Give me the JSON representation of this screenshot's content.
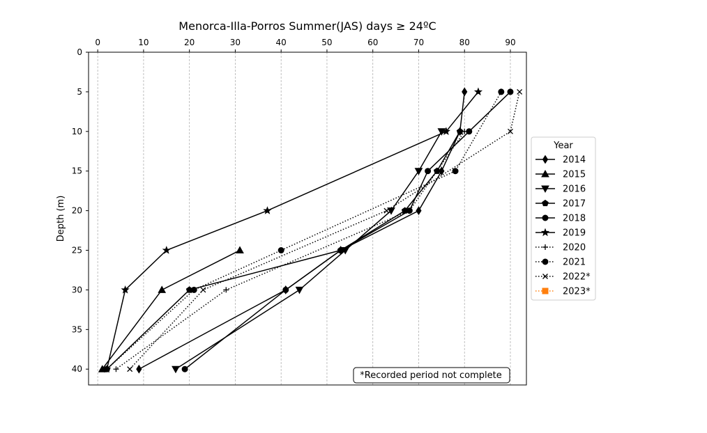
{
  "chart_data": {
    "type": "line",
    "title": "Menorca-Illa-Porros Summer(JAS) days ≥ 24ºC",
    "xlabel": "",
    "ylabel": "Depth (m)",
    "x_axis_position": "top",
    "y_inverted": true,
    "xlim": [
      -2,
      93.5
    ],
    "ylim": [
      0,
      42
    ],
    "x_ticks": [
      0,
      10,
      20,
      30,
      40,
      50,
      60,
      70,
      80,
      90
    ],
    "y_ticks": [
      0,
      5,
      10,
      15,
      20,
      25,
      30,
      35,
      40
    ],
    "grid": "vertical dashed",
    "legend": {
      "title": "Year",
      "placement": "right-outside"
    },
    "annotation": "*Recorded period not complete",
    "series": [
      {
        "name": "2014",
        "marker": "diamond",
        "style": "solid",
        "color": "#000000",
        "points": [
          [
            80,
            5
          ],
          [
            79,
            10
          ],
          [
            75,
            15
          ],
          [
            70,
            20
          ],
          [
            53,
            25
          ],
          [
            41,
            30
          ],
          [
            9,
            40
          ]
        ]
      },
      {
        "name": "2015",
        "marker": "triangle-up",
        "style": "solid",
        "color": "#000000",
        "points": [
          [
            31,
            25
          ],
          [
            14,
            30
          ],
          [
            1,
            40
          ]
        ]
      },
      {
        "name": "2016",
        "marker": "triangle-down",
        "style": "solid",
        "color": "#000000",
        "points": [
          [
            75,
            10
          ],
          [
            70,
            15
          ],
          [
            64,
            20
          ],
          [
            54,
            25
          ],
          [
            44,
            30
          ],
          [
            17,
            40
          ]
        ]
      },
      {
        "name": "2017",
        "marker": "pentagon",
        "style": "solid",
        "color": "#000000",
        "points": [
          [
            79,
            10
          ],
          [
            74,
            15
          ],
          [
            67,
            20
          ],
          [
            53,
            25
          ],
          [
            20,
            30
          ],
          [
            2,
            40
          ]
        ]
      },
      {
        "name": "2018",
        "marker": "circle",
        "style": "solid",
        "color": "#000000",
        "points": [
          [
            90,
            5
          ],
          [
            81,
            10
          ],
          [
            72,
            15
          ],
          [
            68,
            20
          ],
          [
            53,
            25
          ],
          [
            41,
            30
          ],
          [
            19,
            40
          ]
        ]
      },
      {
        "name": "2019",
        "marker": "star",
        "style": "solid",
        "color": "#000000",
        "points": [
          [
            83,
            5
          ],
          [
            76,
            10
          ],
          [
            37,
            20
          ],
          [
            15,
            25
          ],
          [
            6,
            30
          ],
          [
            2,
            40
          ]
        ]
      },
      {
        "name": "2020",
        "marker": "plus",
        "style": "dotted",
        "color": "#000000",
        "points": [
          [
            80,
            10
          ],
          [
            68,
            20
          ],
          [
            28,
            30
          ],
          [
            4,
            40
          ]
        ]
      },
      {
        "name": "2021",
        "marker": "circle",
        "style": "dotted",
        "color": "#000000",
        "points": [
          [
            88,
            5
          ],
          [
            78,
            15
          ],
          [
            40,
            25
          ],
          [
            21,
            30
          ],
          [
            2,
            40
          ]
        ]
      },
      {
        "name": "2022*",
        "marker": "x",
        "style": "dotted",
        "color": "#000000",
        "points": [
          [
            92,
            5
          ],
          [
            90,
            10
          ],
          [
            63,
            20
          ],
          [
            23,
            30
          ],
          [
            7,
            40
          ]
        ]
      },
      {
        "name": "2023*",
        "marker": "square",
        "style": "dotted",
        "color": "#ff7f0e",
        "points": []
      }
    ]
  }
}
